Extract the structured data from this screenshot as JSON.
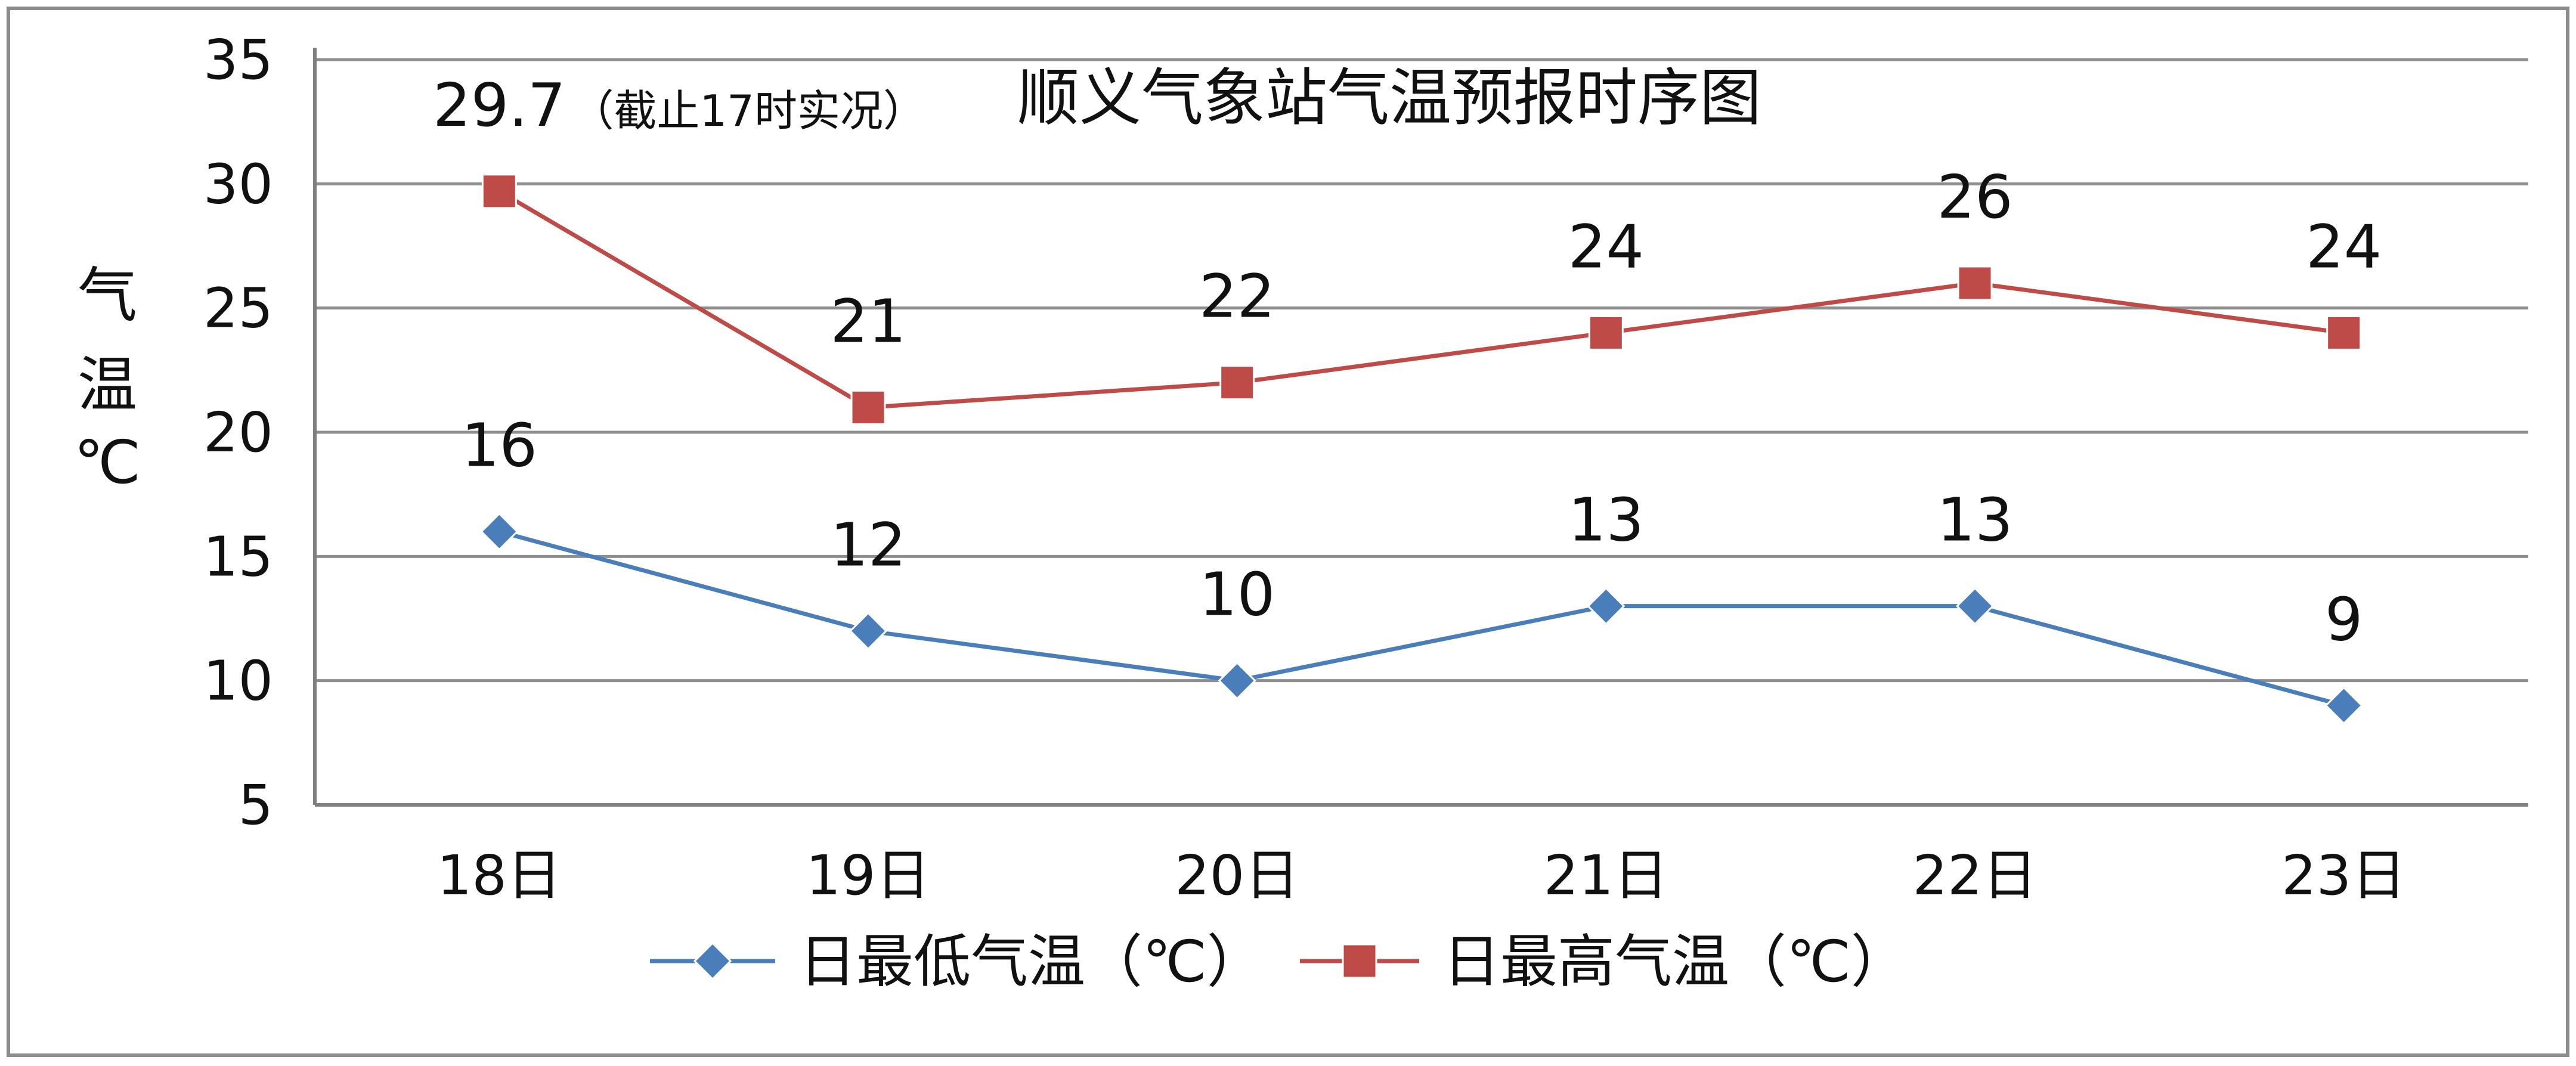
{
  "chart_data": {
    "type": "line",
    "title": "顺义气象站气温预报时序图",
    "ylabel": [
      "气",
      "温",
      "℃"
    ],
    "xlabel": "",
    "categories": [
      "18日",
      "19日",
      "20日",
      "21日",
      "22日",
      "23日"
    ],
    "ylim": [
      5,
      35
    ],
    "yticks": [
      5,
      10,
      15,
      20,
      25,
      30,
      35
    ],
    "grid": true,
    "legend_position": "bottom",
    "series": [
      {
        "name": "日最低气温（℃）",
        "values": [
          16,
          12,
          10,
          13,
          13,
          9
        ],
        "labels": [
          "16",
          "12",
          "10",
          "13",
          "13",
          "9"
        ],
        "color": "#4a7ebb",
        "marker": "diamond"
      },
      {
        "name": "日最高气温（℃）",
        "values": [
          29.7,
          21,
          22,
          24,
          26,
          24
        ],
        "labels": [
          "29.7",
          "21",
          "22",
          "24",
          "26",
          "24"
        ],
        "color": "#be4b48",
        "marker": "square"
      }
    ],
    "annotation": "（截止17时实况）"
  }
}
